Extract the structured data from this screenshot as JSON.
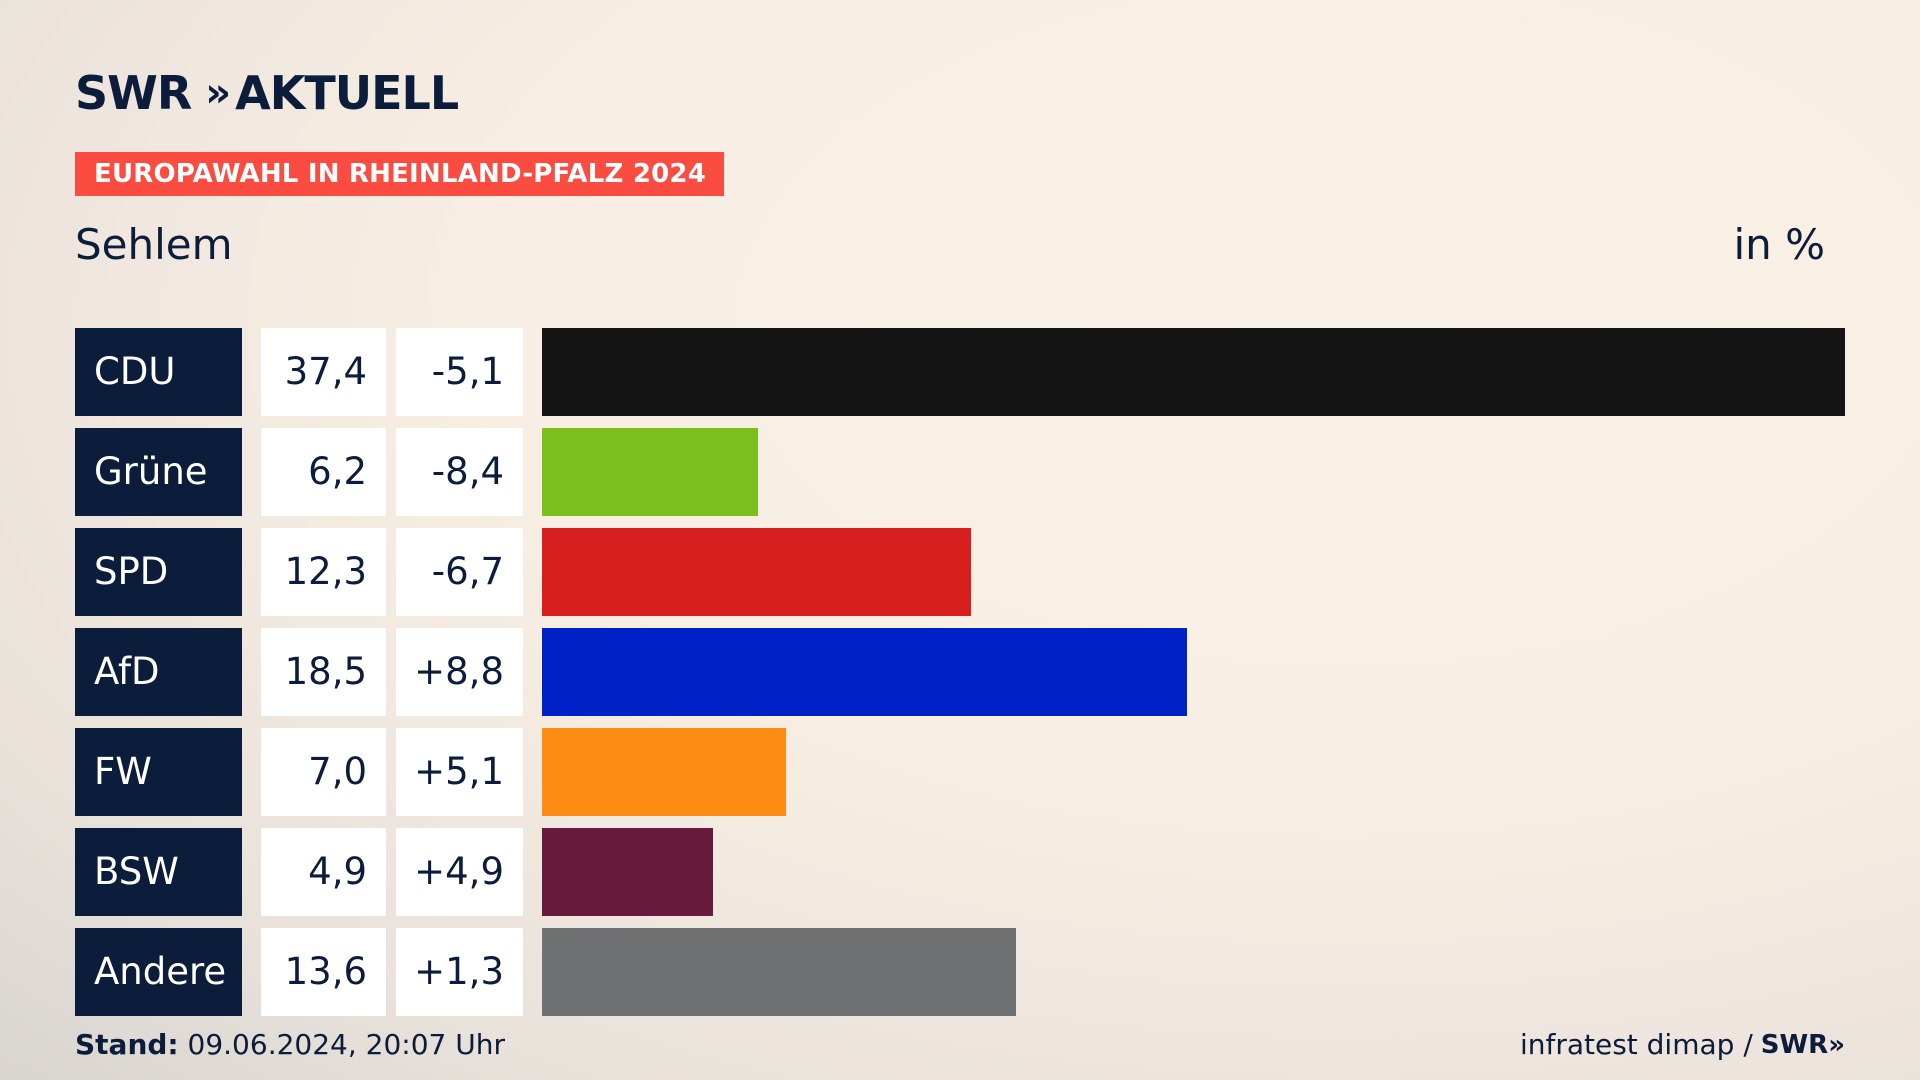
{
  "brand": {
    "logo_text": "SWR",
    "logo_chevrons": "»",
    "logo_suffix": "AKTUELL"
  },
  "banner": {
    "label": "EUROPAWAHL IN RHEINLAND-PFALZ 2024",
    "color": "#fb4c42"
  },
  "region": "Sehlem",
  "unit_label": "in %",
  "chart_data": {
    "type": "bar",
    "title": "EUROPAWAHL IN RHEINLAND-PFALZ 2024",
    "subtitle": "Sehlem",
    "ylabel": "in %",
    "categories": [
      "CDU",
      "Grüne",
      "SPD",
      "AfD",
      "FW",
      "BSW",
      "Andere"
    ],
    "values": [
      37.4,
      6.2,
      12.3,
      18.5,
      7.0,
      4.9,
      13.6
    ],
    "values_label": [
      "37,4",
      "6,2",
      "12,3",
      "18,5",
      "7,0",
      "4,9",
      "13,6"
    ],
    "diffs": [
      -5.1,
      -8.4,
      -6.7,
      8.8,
      5.1,
      4.9,
      1.3
    ],
    "diffs_label": [
      "-5,1",
      "-8,4",
      "-6,7",
      "+8,8",
      "+5,1",
      "+4,9",
      "+1,3"
    ],
    "colors": [
      "#141414",
      "#7abf1c",
      "#d71f1f",
      "#0020c8",
      "#fd8c14",
      "#681a3d",
      "#707173"
    ],
    "xlim": [
      0,
      37.4
    ]
  },
  "footer": {
    "stand_label": "Stand:",
    "stand_value": "09.06.2024, 20:07 Uhr",
    "source": "infratest dimap /",
    "source_brand": "SWR»"
  }
}
